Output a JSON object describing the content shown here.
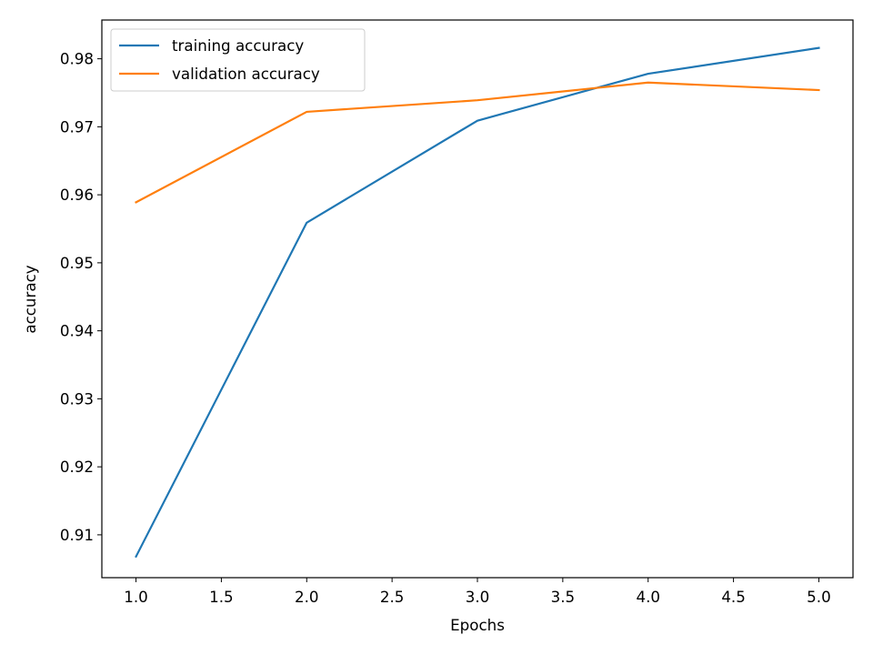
{
  "chart_data": {
    "type": "line",
    "title": "",
    "xlabel": "Epochs",
    "ylabel": "accuracy",
    "xlim": [
      0.8,
      5.2
    ],
    "ylim": [
      0.9037,
      0.9857
    ],
    "xticks": [
      1.0,
      1.5,
      2.0,
      2.5,
      3.0,
      3.5,
      4.0,
      4.5,
      5.0
    ],
    "xtick_labels": [
      "1.0",
      "1.5",
      "2.0",
      "2.5",
      "3.0",
      "3.5",
      "4.0",
      "4.5",
      "5.0"
    ],
    "yticks": [
      0.91,
      0.92,
      0.93,
      0.94,
      0.95,
      0.96,
      0.97,
      0.98
    ],
    "ytick_labels": [
      "0.91",
      "0.92",
      "0.93",
      "0.94",
      "0.95",
      "0.96",
      "0.97",
      "0.98"
    ],
    "grid": false,
    "legend_position": "top-left",
    "series": [
      {
        "name": "training accuracy",
        "color": "#1f77b4",
        "x": [
          1,
          2,
          3,
          4,
          5
        ],
        "y": [
          0.9068,
          0.9559,
          0.9709,
          0.9778,
          0.9816
        ]
      },
      {
        "name": "validation accuracy",
        "color": "#ff7f0e",
        "x": [
          1,
          2,
          3,
          4,
          5
        ],
        "y": [
          0.9589,
          0.9722,
          0.9739,
          0.9765,
          0.9754
        ]
      }
    ]
  }
}
